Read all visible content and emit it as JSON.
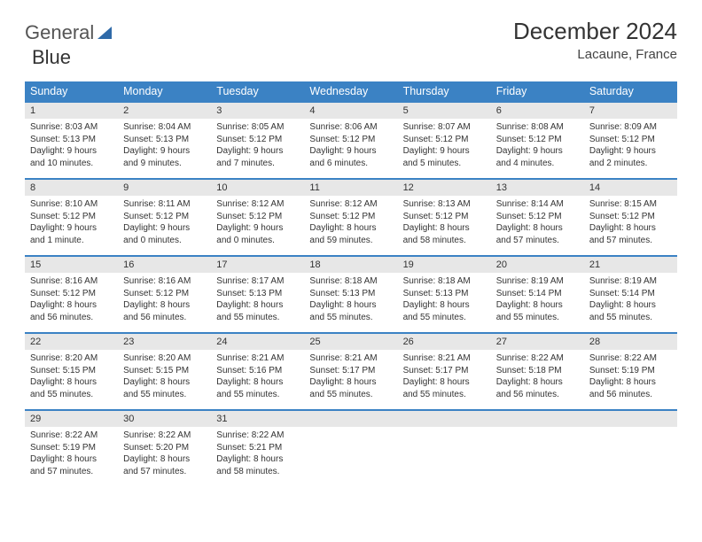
{
  "logo": {
    "part1": "General",
    "part2": "Blue"
  },
  "title": "December 2024",
  "location": "Lacaune, France",
  "styling": {
    "header_bg": "#3b82c4",
    "header_fg": "#ffffff",
    "daybar_bg": "#e7e7e7",
    "border_color": "#3b82c4",
    "page_bg": "#ffffff",
    "text_color": "#333333",
    "title_fontsize": 26,
    "header_fontsize": 12.5,
    "cell_fontsize": 10
  },
  "weekdays": [
    "Sunday",
    "Monday",
    "Tuesday",
    "Wednesday",
    "Thursday",
    "Friday",
    "Saturday"
  ],
  "weeks": [
    [
      {
        "n": "1",
        "sr": "Sunrise: 8:03 AM",
        "ss": "Sunset: 5:13 PM",
        "d1": "Daylight: 9 hours",
        "d2": "and 10 minutes."
      },
      {
        "n": "2",
        "sr": "Sunrise: 8:04 AM",
        "ss": "Sunset: 5:13 PM",
        "d1": "Daylight: 9 hours",
        "d2": "and 9 minutes."
      },
      {
        "n": "3",
        "sr": "Sunrise: 8:05 AM",
        "ss": "Sunset: 5:12 PM",
        "d1": "Daylight: 9 hours",
        "d2": "and 7 minutes."
      },
      {
        "n": "4",
        "sr": "Sunrise: 8:06 AM",
        "ss": "Sunset: 5:12 PM",
        "d1": "Daylight: 9 hours",
        "d2": "and 6 minutes."
      },
      {
        "n": "5",
        "sr": "Sunrise: 8:07 AM",
        "ss": "Sunset: 5:12 PM",
        "d1": "Daylight: 9 hours",
        "d2": "and 5 minutes."
      },
      {
        "n": "6",
        "sr": "Sunrise: 8:08 AM",
        "ss": "Sunset: 5:12 PM",
        "d1": "Daylight: 9 hours",
        "d2": "and 4 minutes."
      },
      {
        "n": "7",
        "sr": "Sunrise: 8:09 AM",
        "ss": "Sunset: 5:12 PM",
        "d1": "Daylight: 9 hours",
        "d2": "and 2 minutes."
      }
    ],
    [
      {
        "n": "8",
        "sr": "Sunrise: 8:10 AM",
        "ss": "Sunset: 5:12 PM",
        "d1": "Daylight: 9 hours",
        "d2": "and 1 minute."
      },
      {
        "n": "9",
        "sr": "Sunrise: 8:11 AM",
        "ss": "Sunset: 5:12 PM",
        "d1": "Daylight: 9 hours",
        "d2": "and 0 minutes."
      },
      {
        "n": "10",
        "sr": "Sunrise: 8:12 AM",
        "ss": "Sunset: 5:12 PM",
        "d1": "Daylight: 9 hours",
        "d2": "and 0 minutes."
      },
      {
        "n": "11",
        "sr": "Sunrise: 8:12 AM",
        "ss": "Sunset: 5:12 PM",
        "d1": "Daylight: 8 hours",
        "d2": "and 59 minutes."
      },
      {
        "n": "12",
        "sr": "Sunrise: 8:13 AM",
        "ss": "Sunset: 5:12 PM",
        "d1": "Daylight: 8 hours",
        "d2": "and 58 minutes."
      },
      {
        "n": "13",
        "sr": "Sunrise: 8:14 AM",
        "ss": "Sunset: 5:12 PM",
        "d1": "Daylight: 8 hours",
        "d2": "and 57 minutes."
      },
      {
        "n": "14",
        "sr": "Sunrise: 8:15 AM",
        "ss": "Sunset: 5:12 PM",
        "d1": "Daylight: 8 hours",
        "d2": "and 57 minutes."
      }
    ],
    [
      {
        "n": "15",
        "sr": "Sunrise: 8:16 AM",
        "ss": "Sunset: 5:12 PM",
        "d1": "Daylight: 8 hours",
        "d2": "and 56 minutes."
      },
      {
        "n": "16",
        "sr": "Sunrise: 8:16 AM",
        "ss": "Sunset: 5:12 PM",
        "d1": "Daylight: 8 hours",
        "d2": "and 56 minutes."
      },
      {
        "n": "17",
        "sr": "Sunrise: 8:17 AM",
        "ss": "Sunset: 5:13 PM",
        "d1": "Daylight: 8 hours",
        "d2": "and 55 minutes."
      },
      {
        "n": "18",
        "sr": "Sunrise: 8:18 AM",
        "ss": "Sunset: 5:13 PM",
        "d1": "Daylight: 8 hours",
        "d2": "and 55 minutes."
      },
      {
        "n": "19",
        "sr": "Sunrise: 8:18 AM",
        "ss": "Sunset: 5:13 PM",
        "d1": "Daylight: 8 hours",
        "d2": "and 55 minutes."
      },
      {
        "n": "20",
        "sr": "Sunrise: 8:19 AM",
        "ss": "Sunset: 5:14 PM",
        "d1": "Daylight: 8 hours",
        "d2": "and 55 minutes."
      },
      {
        "n": "21",
        "sr": "Sunrise: 8:19 AM",
        "ss": "Sunset: 5:14 PM",
        "d1": "Daylight: 8 hours",
        "d2": "and 55 minutes."
      }
    ],
    [
      {
        "n": "22",
        "sr": "Sunrise: 8:20 AM",
        "ss": "Sunset: 5:15 PM",
        "d1": "Daylight: 8 hours",
        "d2": "and 55 minutes."
      },
      {
        "n": "23",
        "sr": "Sunrise: 8:20 AM",
        "ss": "Sunset: 5:15 PM",
        "d1": "Daylight: 8 hours",
        "d2": "and 55 minutes."
      },
      {
        "n": "24",
        "sr": "Sunrise: 8:21 AM",
        "ss": "Sunset: 5:16 PM",
        "d1": "Daylight: 8 hours",
        "d2": "and 55 minutes."
      },
      {
        "n": "25",
        "sr": "Sunrise: 8:21 AM",
        "ss": "Sunset: 5:17 PM",
        "d1": "Daylight: 8 hours",
        "d2": "and 55 minutes."
      },
      {
        "n": "26",
        "sr": "Sunrise: 8:21 AM",
        "ss": "Sunset: 5:17 PM",
        "d1": "Daylight: 8 hours",
        "d2": "and 55 minutes."
      },
      {
        "n": "27",
        "sr": "Sunrise: 8:22 AM",
        "ss": "Sunset: 5:18 PM",
        "d1": "Daylight: 8 hours",
        "d2": "and 56 minutes."
      },
      {
        "n": "28",
        "sr": "Sunrise: 8:22 AM",
        "ss": "Sunset: 5:19 PM",
        "d1": "Daylight: 8 hours",
        "d2": "and 56 minutes."
      }
    ],
    [
      {
        "n": "29",
        "sr": "Sunrise: 8:22 AM",
        "ss": "Sunset: 5:19 PM",
        "d1": "Daylight: 8 hours",
        "d2": "and 57 minutes."
      },
      {
        "n": "30",
        "sr": "Sunrise: 8:22 AM",
        "ss": "Sunset: 5:20 PM",
        "d1": "Daylight: 8 hours",
        "d2": "and 57 minutes."
      },
      {
        "n": "31",
        "sr": "Sunrise: 8:22 AM",
        "ss": "Sunset: 5:21 PM",
        "d1": "Daylight: 8 hours",
        "d2": "and 58 minutes."
      },
      null,
      null,
      null,
      null
    ]
  ]
}
